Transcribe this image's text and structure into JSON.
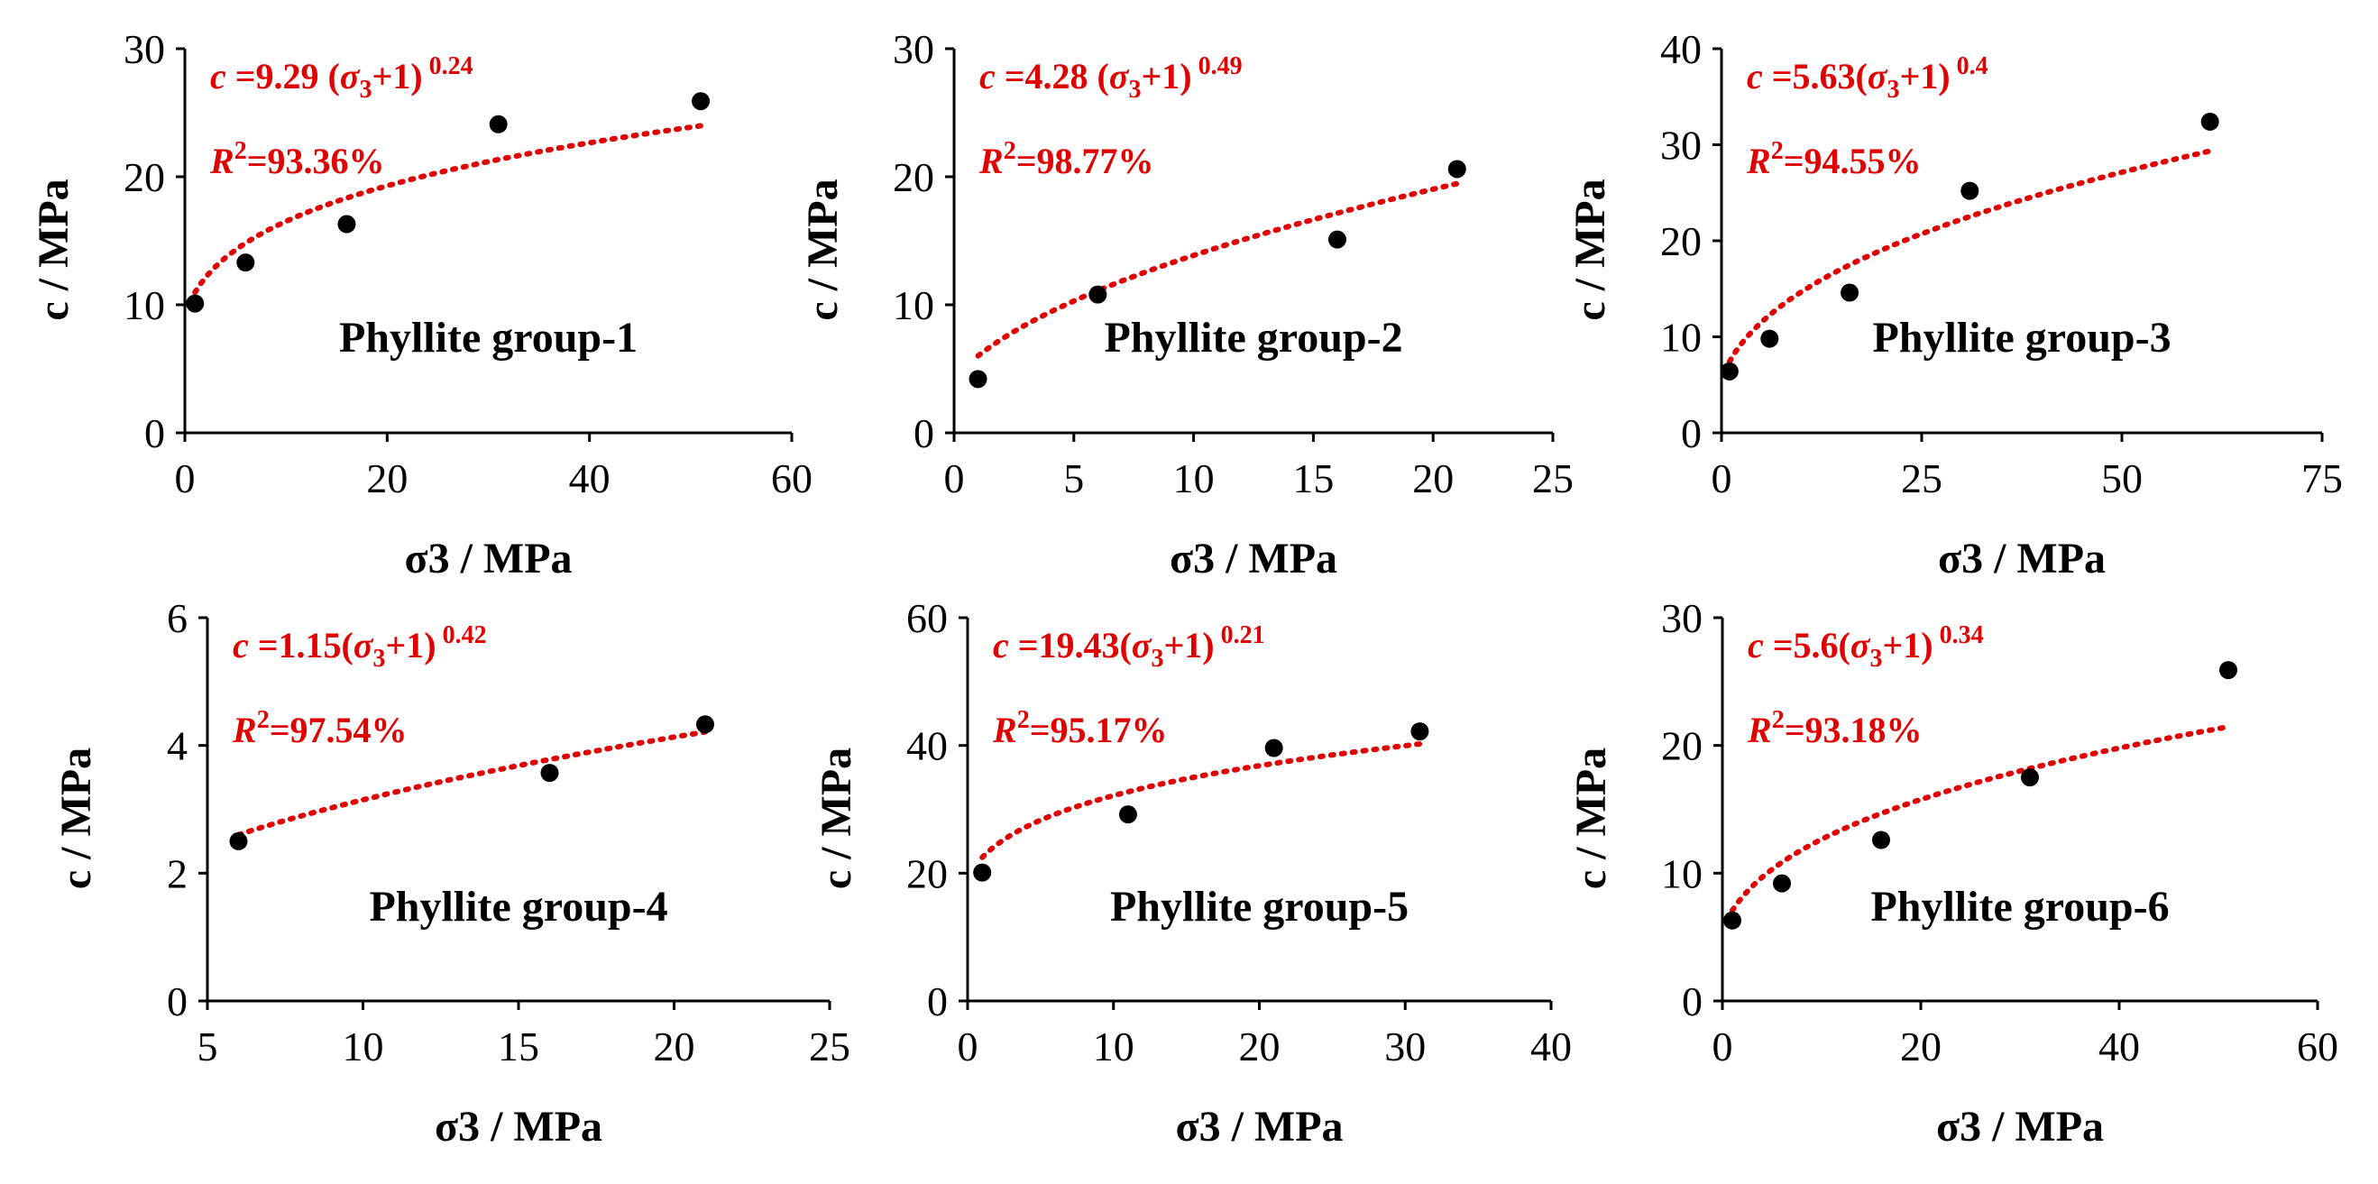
{
  "chart_data": [
    {
      "type": "scatter",
      "title": "Phyllite group-1",
      "xlabel": "σ3 / MPa",
      "ylabel": "c / MPa",
      "xlim": [
        0,
        60
      ],
      "xticks": [
        0,
        20,
        40,
        60
      ],
      "ylim": [
        0,
        30
      ],
      "yticks": [
        0,
        10,
        20,
        30
      ],
      "x": [
        1,
        6,
        16,
        31,
        51
      ],
      "y": [
        10.1,
        13.3,
        16.3,
        24.1,
        25.9
      ],
      "fit": {
        "a": 9.29,
        "b": 0.24,
        "x_start": 1,
        "x_end": 51
      },
      "equation": {
        "c": "c",
        "eq_coef": " =9.29 (",
        "sigma": "σ",
        "sub": "3",
        "tail": "+1)",
        "exp": " 0.24"
      },
      "r2": {
        "R": "R",
        "sup": "2",
        "value": "=93.36%"
      }
    },
    {
      "type": "scatter",
      "title": "Phyllite group-2",
      "xlabel": "σ3 / MPa",
      "ylabel": "c / MPa",
      "xlim": [
        0,
        25
      ],
      "xticks": [
        0,
        5,
        10,
        15,
        20,
        25
      ],
      "ylim": [
        0,
        30
      ],
      "yticks": [
        0,
        10,
        20,
        30
      ],
      "x": [
        1,
        6,
        16,
        21
      ],
      "y": [
        4.2,
        10.8,
        15.1,
        20.6
      ],
      "fit": {
        "a": 4.28,
        "b": 0.49,
        "x_start": 1,
        "x_end": 21
      },
      "equation": {
        "c": "c",
        "eq_coef": " =4.28 (",
        "sigma": "σ",
        "sub": "3",
        "tail": "+1)",
        "exp": " 0.49"
      },
      "r2": {
        "R": "R",
        "sup": "2",
        "value": "=98.77%"
      }
    },
    {
      "type": "scatter",
      "title": "Phyllite group-3",
      "xlabel": "σ3 / MPa",
      "ylabel": "c / MPa",
      "xlim": [
        0,
        75
      ],
      "xticks": [
        0,
        25,
        50,
        75
      ],
      "ylim": [
        0,
        40
      ],
      "yticks": [
        0,
        10,
        20,
        30,
        40
      ],
      "x": [
        1,
        6,
        16,
        31,
        61
      ],
      "y": [
        6.4,
        9.8,
        14.6,
        25.2,
        32.4
      ],
      "fit": {
        "a": 5.63,
        "b": 0.4,
        "x_start": 1,
        "x_end": 61
      },
      "equation": {
        "c": "c",
        "eq_coef": " =5.63(",
        "sigma": "σ",
        "sub": "3",
        "tail": "+1)",
        "exp": " 0.4"
      },
      "r2": {
        "R": "R",
        "sup": "2",
        "value": "=94.55%"
      }
    },
    {
      "type": "scatter",
      "title": "Phyllite group-4",
      "xlabel": "σ3 / MPa",
      "ylabel": "c / MPa",
      "xlim": [
        5,
        25
      ],
      "xticks": [
        5,
        10,
        15,
        20,
        25
      ],
      "ylim": [
        0,
        6
      ],
      "yticks": [
        0,
        2,
        4,
        6
      ],
      "x": [
        6,
        16,
        21
      ],
      "y": [
        2.5,
        3.57,
        4.33
      ],
      "fit": {
        "a": 1.15,
        "b": 0.42,
        "x_start": 6,
        "x_end": 21
      },
      "equation": {
        "c": "c",
        "eq_coef": " =1.15(",
        "sigma": "σ",
        "sub": "3",
        "tail": "+1)",
        "exp": " 0.42"
      },
      "r2": {
        "R": "R",
        "sup": "2",
        "value": "=97.54%"
      }
    },
    {
      "type": "scatter",
      "title": "Phyllite group-5",
      "xlabel": "σ3 / MPa",
      "ylabel": "c / MPa",
      "xlim": [
        0,
        40
      ],
      "xticks": [
        0,
        10,
        20,
        30,
        40
      ],
      "ylim": [
        0,
        60
      ],
      "yticks": [
        0,
        20,
        40,
        60
      ],
      "x": [
        1,
        11,
        21,
        31
      ],
      "y": [
        20.1,
        29.2,
        39.6,
        42.2
      ],
      "fit": {
        "a": 19.43,
        "b": 0.21,
        "x_start": 1,
        "x_end": 31
      },
      "equation": {
        "c": "c",
        "eq_coef": " =19.43(",
        "sigma": "σ",
        "sub": "3",
        "tail": "+1)",
        "exp": " 0.21"
      },
      "r2": {
        "R": "R",
        "sup": "2",
        "value": "=95.17%"
      }
    },
    {
      "type": "scatter",
      "title": "Phyllite group-6",
      "xlabel": "σ3 / MPa",
      "ylabel": "c / MPa",
      "xlim": [
        0,
        60
      ],
      "xticks": [
        0,
        20,
        40,
        60
      ],
      "ylim": [
        0,
        30
      ],
      "yticks": [
        0,
        10,
        20,
        30
      ],
      "x": [
        1,
        6,
        16,
        31,
        51
      ],
      "y": [
        6.3,
        9.2,
        12.6,
        17.5,
        25.9
      ],
      "fit": {
        "a": 5.6,
        "b": 0.34,
        "x_start": 1,
        "x_end": 51
      },
      "equation": {
        "c": "c",
        "eq_coef": " =5.6(",
        "sigma": "σ",
        "sub": "3",
        "tail": "+1)",
        "exp": " 0.34"
      },
      "r2": {
        "R": "R",
        "sup": "2",
        "value": "=93.18%"
      }
    }
  ],
  "colors": {
    "fit_line": "#e00000",
    "annotation": "#e00000",
    "points": "#000000",
    "axes": "#000000"
  }
}
